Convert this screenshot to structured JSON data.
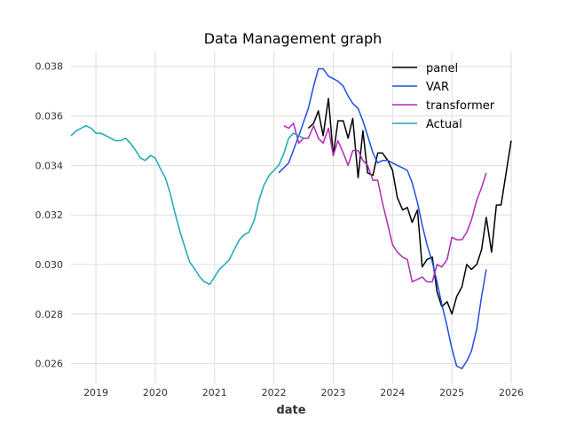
{
  "chart_data": {
    "type": "line",
    "title": "Data Management graph",
    "xlabel": "date",
    "ylabel": "",
    "xlim": [
      2018.58,
      2026.0
    ],
    "ylim": [
      0.0252,
      0.0386
    ],
    "xticks": [
      {
        "value": 2019,
        "label": "2019"
      },
      {
        "value": 2020,
        "label": "2020"
      },
      {
        "value": 2021,
        "label": "2021"
      },
      {
        "value": 2022,
        "label": "2022"
      },
      {
        "value": 2023,
        "label": "2023"
      },
      {
        "value": 2024,
        "label": "2024"
      },
      {
        "value": 2025,
        "label": "2025"
      },
      {
        "value": 2026,
        "label": "2026"
      }
    ],
    "yticks": [
      {
        "value": 0.026,
        "label": "0.026"
      },
      {
        "value": 0.028,
        "label": "0.028"
      },
      {
        "value": 0.03,
        "label": "0.030"
      },
      {
        "value": 0.032,
        "label": "0.032"
      },
      {
        "value": 0.034,
        "label": "0.034"
      },
      {
        "value": 0.036,
        "label": "0.036"
      },
      {
        "value": 0.038,
        "label": "0.038"
      }
    ],
    "grid": true,
    "legend_position": "top-right",
    "series": [
      {
        "name": "panel",
        "color": "#000000",
        "x": [
          2022.58,
          2022.67,
          2022.75,
          2022.83,
          2022.92,
          2023.0,
          2023.08,
          2023.17,
          2023.25,
          2023.33,
          2023.42,
          2023.5,
          2023.58,
          2023.67,
          2023.75,
          2023.83,
          2023.92,
          2024.0,
          2024.08,
          2024.17,
          2024.25,
          2024.33,
          2024.42,
          2024.5,
          2024.58,
          2024.67,
          2024.75,
          2024.83,
          2024.92,
          2025.0,
          2025.08,
          2025.17,
          2025.25,
          2025.33,
          2025.42,
          2025.5,
          2025.58,
          2025.67,
          2025.75,
          2025.83,
          2025.92,
          2026.0
        ],
        "y": [
          0.0355,
          0.0357,
          0.0362,
          0.0352,
          0.0367,
          0.0344,
          0.0358,
          0.0358,
          0.0351,
          0.0359,
          0.0335,
          0.0354,
          0.0337,
          0.0336,
          0.0345,
          0.0345,
          0.0342,
          0.0338,
          0.0327,
          0.0322,
          0.0323,
          0.0317,
          0.0322,
          0.0299,
          0.0302,
          0.0303,
          0.0289,
          0.0283,
          0.0285,
          0.028,
          0.0287,
          0.0291,
          0.03,
          0.0298,
          0.03,
          0.0306,
          0.0319,
          0.0305,
          0.0324,
          0.0324,
          0.0338,
          0.035
        ]
      },
      {
        "name": "VAR",
        "color": "#1f4fe0",
        "x": [
          2022.08,
          2022.25,
          2022.42,
          2022.58,
          2022.67,
          2022.75,
          2022.83,
          2022.92,
          2023.0,
          2023.08,
          2023.17,
          2023.25,
          2023.33,
          2023.42,
          2023.5,
          2023.58,
          2023.67,
          2023.75,
          2023.83,
          2023.92,
          2024.0,
          2024.08,
          2024.17,
          2024.25,
          2024.33,
          2024.42,
          2024.5,
          2024.58,
          2024.67,
          2024.75,
          2024.83,
          2024.92,
          2025.0,
          2025.08,
          2025.17,
          2025.25,
          2025.33,
          2025.42,
          2025.5,
          2025.58
        ],
        "y": [
          0.0337,
          0.0341,
          0.0352,
          0.0363,
          0.0372,
          0.0379,
          0.0379,
          0.0376,
          0.0375,
          0.0374,
          0.0372,
          0.0368,
          0.0365,
          0.0363,
          0.0358,
          0.0352,
          0.0345,
          0.0341,
          0.0342,
          0.0342,
          0.0341,
          0.034,
          0.0339,
          0.0338,
          0.0333,
          0.0325,
          0.0316,
          0.0308,
          0.0301,
          0.0293,
          0.0284,
          0.0275,
          0.0266,
          0.0259,
          0.0258,
          0.0261,
          0.0265,
          0.0274,
          0.0287,
          0.0298
        ]
      },
      {
        "name": "transformer",
        "color": "#b02ab8",
        "x": [
          2022.17,
          2022.25,
          2022.33,
          2022.42,
          2022.5,
          2022.58,
          2022.67,
          2022.75,
          2022.83,
          2022.92,
          2023.0,
          2023.08,
          2023.17,
          2023.25,
          2023.33,
          2023.42,
          2023.5,
          2023.58,
          2023.67,
          2023.75,
          2023.83,
          2023.92,
          2024.0,
          2024.08,
          2024.17,
          2024.25,
          2024.33,
          2024.42,
          2024.5,
          2024.58,
          2024.67,
          2024.75,
          2024.83,
          2024.92,
          2025.0,
          2025.08,
          2025.17,
          2025.25,
          2025.33,
          2025.42,
          2025.5,
          2025.58
        ],
        "y": [
          0.0356,
          0.0355,
          0.0357,
          0.0349,
          0.0351,
          0.0351,
          0.0356,
          0.0351,
          0.0349,
          0.0355,
          0.0344,
          0.035,
          0.0345,
          0.034,
          0.0346,
          0.0346,
          0.0342,
          0.034,
          0.0334,
          0.0334,
          0.0325,
          0.0316,
          0.0308,
          0.0305,
          0.0303,
          0.0302,
          0.0293,
          0.0294,
          0.0295,
          0.0293,
          0.0293,
          0.03,
          0.0299,
          0.0302,
          0.0311,
          0.031,
          0.031,
          0.0313,
          0.0318,
          0.0326,
          0.0331,
          0.0337
        ]
      },
      {
        "name": "Actual",
        "color": "#17a9b8",
        "x": [
          2018.58,
          2018.67,
          2018.75,
          2018.83,
          2018.92,
          2019.0,
          2019.08,
          2019.17,
          2019.25,
          2019.33,
          2019.42,
          2019.5,
          2019.58,
          2019.67,
          2019.75,
          2019.83,
          2019.92,
          2020.0,
          2020.08,
          2020.17,
          2020.25,
          2020.33,
          2020.42,
          2020.5,
          2020.58,
          2020.67,
          2020.75,
          2020.83,
          2020.92,
          2021.0,
          2021.08,
          2021.17,
          2021.25,
          2021.33,
          2021.42,
          2021.5,
          2021.58,
          2021.67,
          2021.75,
          2021.83,
          2021.92,
          2022.0,
          2022.08,
          2022.17,
          2022.25,
          2022.33,
          2022.42,
          2022.5
        ],
        "y": [
          0.0352,
          0.0354,
          0.0355,
          0.0356,
          0.0355,
          0.0353,
          0.0353,
          0.0352,
          0.0351,
          0.035,
          0.035,
          0.0351,
          0.0349,
          0.0346,
          0.0343,
          0.0342,
          0.0344,
          0.0343,
          0.0339,
          0.0335,
          0.0329,
          0.0321,
          0.0313,
          0.0307,
          0.0301,
          0.0298,
          0.0295,
          0.0293,
          0.0292,
          0.0295,
          0.0298,
          0.03,
          0.0302,
          0.0306,
          0.031,
          0.0312,
          0.0313,
          0.0318,
          0.0326,
          0.0332,
          0.0336,
          0.0338,
          0.034,
          0.0345,
          0.0351,
          0.0353,
          0.0352,
          0.0351
        ]
      }
    ]
  }
}
